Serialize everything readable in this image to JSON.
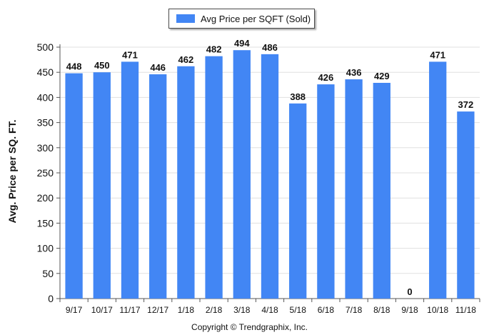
{
  "chart_data": {
    "type": "bar",
    "categories": [
      "9/17",
      "10/17",
      "11/17",
      "12/17",
      "1/18",
      "2/18",
      "3/18",
      "4/18",
      "5/18",
      "6/18",
      "7/18",
      "8/18",
      "9/18",
      "10/18",
      "11/18"
    ],
    "series": [
      {
        "name": "Avg Price per SQFT (Sold)",
        "values": [
          448,
          450,
          471,
          446,
          462,
          482,
          494,
          486,
          388,
          426,
          436,
          429,
          0,
          471,
          372
        ]
      }
    ],
    "data_labels": [
      "448",
      "450",
      "471",
      "446",
      "462",
      "482",
      "494",
      "486",
      "388",
      "426",
      "436",
      "429",
      "0",
      "471",
      "372"
    ],
    "title": "",
    "xlabel": "",
    "ylabel": "Avg. Price per SQ. FT.",
    "ylim": [
      0,
      500
    ],
    "yticks": [
      0,
      50,
      100,
      150,
      200,
      250,
      300,
      350,
      400,
      450,
      500
    ],
    "ytick_labels": [
      "0",
      "50",
      "100",
      "150",
      "200",
      "250",
      "300",
      "350",
      "400",
      "450",
      "500"
    ],
    "grid": true,
    "legend_position": "top-center"
  },
  "colors": {
    "bar": "#4286f4",
    "grid": "#e0e0e0",
    "axis": "#555555"
  },
  "legend": {
    "label": "Avg Price per SQFT (Sold)"
  },
  "footer": {
    "copyright": "Copyright © Trendgraphix, Inc."
  }
}
